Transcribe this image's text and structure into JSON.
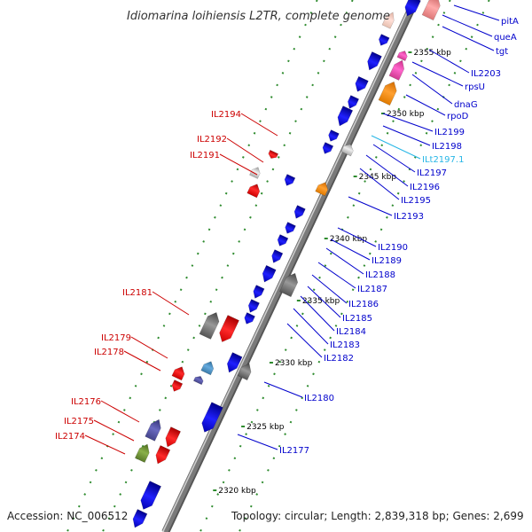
{
  "title": "Idiomarina loihiensis L2TR, complete genome",
  "footer": {
    "accession": "Accession: NC_006512",
    "topology": "Topology: circular; Length: 2,839,318 bp; Genes: 2,699"
  },
  "colors": {
    "backbone": "#7a7a7a",
    "forward_gene": "#0b0bf0",
    "reverse_gene": "#ee0000",
    "rna_label": "#27b6e6",
    "tick": "#2e8b2e",
    "left_label": "#cc0000",
    "right_label": "#0000cc"
  },
  "kbp_marks": [
    "2355 kbp",
    "2350 kbp",
    "2345 kbp",
    "2340 kbp",
    "2335 kbp",
    "2330 kbp",
    "2325 kbp",
    "2320 kbp"
  ],
  "left_labels": [
    "IL2194",
    "IL2192",
    "IL2191",
    "IL2181",
    "IL2179",
    "IL2178",
    "IL2176",
    "IL2175",
    "IL2174"
  ],
  "right_labels": [
    "pitA",
    "queA",
    "tgt",
    "IL2203",
    "rpsU",
    "dnaG",
    "rpoD",
    "IL2199",
    "IL2198",
    "ILt2197.1",
    "IL2197",
    "IL2196",
    "IL2195",
    "IL2193",
    "IL2190",
    "IL2189",
    "IL2188",
    "IL2187",
    "IL2186",
    "IL2185",
    "IL2184",
    "IL2183",
    "IL2182",
    "IL2180",
    "IL2177"
  ]
}
